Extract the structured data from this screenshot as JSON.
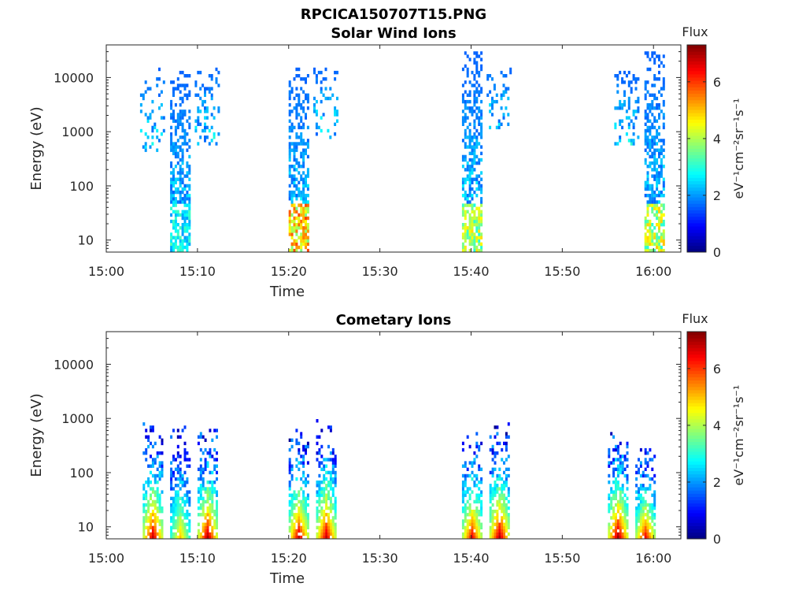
{
  "figure": {
    "title": "RPCICA150707T15.PNG"
  },
  "colors": {
    "axis": "#262626",
    "background": "#ffffff",
    "colormap": "jet"
  },
  "chart_data": [
    {
      "type": "heatmap",
      "title": "Solar Wind Ions",
      "xlabel": "Time",
      "ylabel": "Energy (eV)",
      "y_scale": "log",
      "x_range_minutes_after_15": [
        0,
        63
      ],
      "x_ticks": [
        "15:00",
        "15:10",
        "15:20",
        "15:30",
        "15:40",
        "15:50",
        "16:00"
      ],
      "ylim": [
        6,
        40000
      ],
      "y_ticks": [
        "10",
        "100",
        "1000",
        "10000"
      ],
      "grid": false,
      "colorbar": {
        "title": "Flux",
        "label": "eV⁻¹cm⁻²sr⁻¹s⁻¹",
        "range": [
          0,
          7.3
        ],
        "ticks": [
          "0",
          "2",
          "4",
          "6"
        ]
      },
      "bursts": [
        {
          "time": "15:05",
          "energy_min": 400,
          "energy_max": 15000,
          "peak_flux": 2.0,
          "sparse": true
        },
        {
          "time": "15:08",
          "energy_min": 6,
          "energy_max": 12000,
          "peak_flux": 3.3,
          "low_energy_flux": 3.3
        },
        {
          "time": "15:11",
          "energy_min": 500,
          "energy_max": 15000,
          "peak_flux": 2.5,
          "sparse": true
        },
        {
          "time": "15:21",
          "energy_min": 6,
          "energy_max": 15000,
          "peak_flux": 6.0,
          "low_energy_flux": 6.0
        },
        {
          "time": "15:24",
          "energy_min": 700,
          "energy_max": 15000,
          "peak_flux": 2.3,
          "sparse": true
        },
        {
          "time": "15:40",
          "energy_min": 6,
          "energy_max": 30000,
          "peak_flux": 4.8,
          "low_energy_flux": 4.8
        },
        {
          "time": "15:43",
          "energy_min": 1000,
          "energy_max": 15000,
          "peak_flux": 2.5,
          "sparse": true
        },
        {
          "time": "15:57",
          "energy_min": 500,
          "energy_max": 12000,
          "peak_flux": 2.3,
          "sparse": true
        },
        {
          "time": "16:00",
          "energy_min": 6,
          "energy_max": 30000,
          "peak_flux": 5.0,
          "low_energy_flux": 5.0
        }
      ]
    },
    {
      "type": "heatmap",
      "title": "Cometary Ions",
      "xlabel": "Time",
      "ylabel": "Energy (eV)",
      "y_scale": "log",
      "x_range_minutes_after_15": [
        0,
        63
      ],
      "x_ticks": [
        "15:00",
        "15:10",
        "15:20",
        "15:30",
        "15:40",
        "15:50",
        "16:00"
      ],
      "ylim": [
        6,
        40000
      ],
      "y_ticks": [
        "10",
        "100",
        "1000",
        "10000"
      ],
      "grid": false,
      "colorbar": {
        "title": "Flux",
        "label": "eV⁻¹cm⁻²sr⁻¹s⁻¹",
        "range": [
          0,
          7.3
        ],
        "ticks": [
          "0",
          "2",
          "4",
          "6"
        ]
      },
      "bursts": [
        {
          "time": "15:05",
          "energy_min": 6,
          "energy_max": 900,
          "peak_flux": 6.8
        },
        {
          "time": "15:08",
          "energy_min": 6,
          "energy_max": 700,
          "peak_flux": 5.0
        },
        {
          "time": "15:11",
          "energy_min": 6,
          "energy_max": 600,
          "peak_flux": 7.0
        },
        {
          "time": "15:21",
          "energy_min": 6,
          "energy_max": 600,
          "peak_flux": 6.8
        },
        {
          "time": "15:24",
          "energy_min": 6,
          "energy_max": 900,
          "peak_flux": 6.8
        },
        {
          "time": "15:40",
          "energy_min": 6,
          "energy_max": 600,
          "peak_flux": 6.5
        },
        {
          "time": "15:43",
          "energy_min": 6,
          "energy_max": 800,
          "peak_flux": 7.0
        },
        {
          "time": "15:56",
          "energy_min": 6,
          "energy_max": 700,
          "peak_flux": 7.1
        },
        {
          "time": "15:59",
          "energy_min": 6,
          "energy_max": 300,
          "peak_flux": 6.5
        }
      ]
    }
  ]
}
